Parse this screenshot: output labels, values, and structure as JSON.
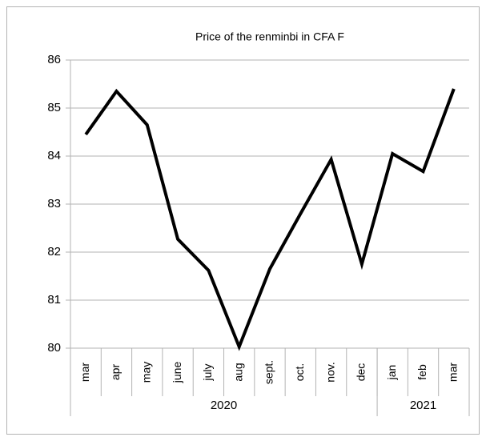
{
  "chart_data": {
    "type": "line",
    "title": "Price of the renminbi in CFA F",
    "categories": [
      "mar",
      "apr",
      "may",
      "june",
      "july",
      "aug",
      "sept.",
      "oct.",
      "nov.",
      "dec",
      "jan",
      "feb",
      "mar"
    ],
    "groups": [
      {
        "label": "2020",
        "span": 10
      },
      {
        "label": "2021",
        "span": 3
      }
    ],
    "values": [
      84.45,
      85.35,
      84.65,
      82.27,
      81.62,
      80.03,
      81.65,
      82.8,
      83.93,
      81.75,
      84.05,
      83.68,
      85.4
    ],
    "color": "#000000",
    "ylim": [
      80,
      86
    ],
    "yticks": [
      80,
      81,
      82,
      83,
      84,
      85,
      86
    ],
    "grid": true
  }
}
